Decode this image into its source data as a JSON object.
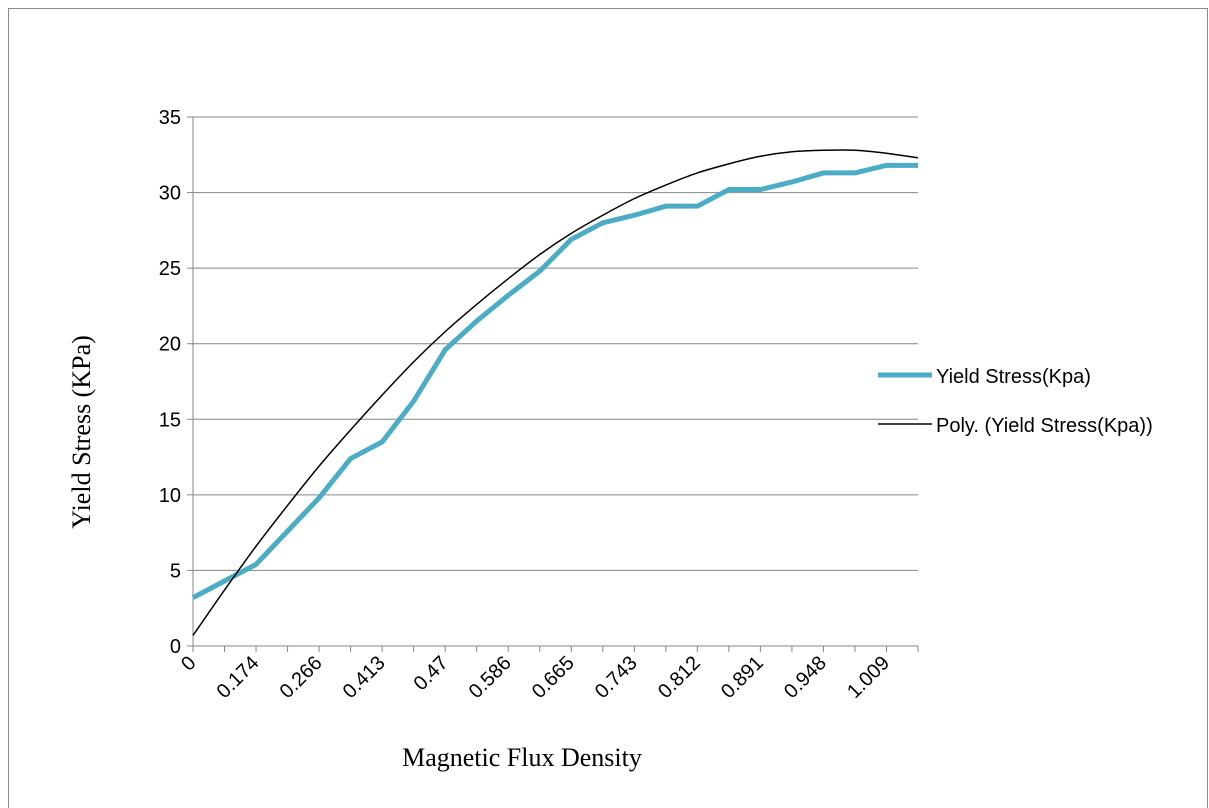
{
  "chart_data": {
    "type": "line",
    "xlabel": "Magnetic Flux Density",
    "ylabel": "Yield Stress (KPa)",
    "ylim": [
      0,
      35
    ],
    "y_ticks": [
      "0",
      "5",
      "10",
      "15",
      "20",
      "25",
      "30",
      "35"
    ],
    "x_tick_labels": [
      "0",
      "0.174",
      "0.266",
      "0.413",
      "0.47",
      "0.586",
      "0.665",
      "0.743",
      "0.812",
      "0.891",
      "0.948",
      "1.009"
    ],
    "categories": [
      "0",
      "",
      "0.174",
      "",
      "0.266",
      "",
      "0.413",
      "",
      "0.47",
      "",
      "0.586",
      "",
      "0.665",
      "",
      "0.743",
      "",
      "0.812",
      "",
      "0.891",
      "",
      "0.948",
      "",
      "1.009",
      ""
    ],
    "grid": true,
    "legend_position": "right",
    "series": [
      {
        "name": "Yield Stress(Kpa)",
        "color": "#4bacc6",
        "values": [
          3.2,
          4.3,
          5.4,
          7.6,
          9.8,
          12.4,
          13.5,
          16.2,
          19.6,
          21.5,
          23.2,
          24.8,
          26.9,
          28.0,
          28.5,
          29.1,
          29.1,
          30.2,
          30.2,
          30.7,
          31.3,
          31.3,
          31.8,
          31.8
        ]
      },
      {
        "name": "Poly. (Yield Stress(Kpa))",
        "color": "#000000",
        "type": "polynomial-trendline",
        "values": [
          0.7,
          3.7,
          6.6,
          9.3,
          11.9,
          14.3,
          16.6,
          18.8,
          20.8,
          22.6,
          24.3,
          25.9,
          27.3,
          28.5,
          29.6,
          30.5,
          31.3,
          31.9,
          32.4,
          32.7,
          32.8,
          32.8,
          32.6,
          32.3
        ]
      }
    ]
  }
}
